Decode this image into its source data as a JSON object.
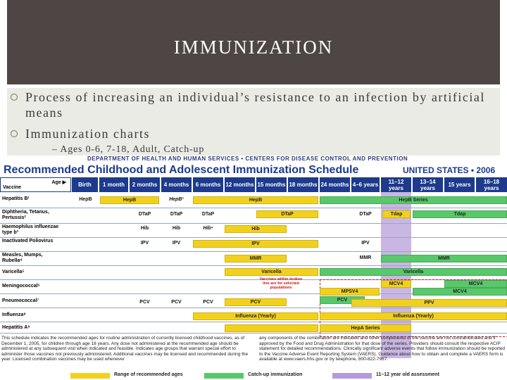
{
  "slide": {
    "title": "IMMUNIZATION",
    "bullets": [
      "Process of increasing an individual’s resistance to an infection by artificial means",
      "Immunization charts"
    ],
    "sub_bullet": "– Ages 0-6, 7-18, Adult, Catch-up",
    "colors": {
      "title_bg": "#4e4644",
      "content_bg": "#e9ebe4",
      "bullet_mark": "#8a8f6b"
    }
  },
  "schedule": {
    "department": "DEPARTMENT OF HEALTH AND HUMAN SERVICES • CENTERS FOR DISEASE CONTROL AND PREVENTION",
    "title": "Recommended Childhood and Adolescent Immunization Schedule",
    "country": "UNITED STATES • 2006",
    "vaccine_header": "Vaccine",
    "age_header": "Age ▶",
    "ages": [
      "Birth",
      "1 month",
      "2 months",
      "4 months",
      "6 months",
      "12 months",
      "15 months",
      "18 months",
      "24 months",
      "4–6 years",
      "11–12 years",
      "13–14 years",
      "15 years",
      "16–18 years"
    ],
    "vaccines": [
      "Hepatitis B¹",
      "Diphtheria, Tetanus, Pertussis²",
      "Haemophilus influenzae type b³",
      "Inactivated Poliovirus",
      "Measles, Mumps, Rubella⁴",
      "Varicella⁵",
      "Meningococcal⁶",
      "Pneumococcal⁷",
      "Influenza⁸",
      "Hepatitis A⁹"
    ],
    "bar_labels": {
      "hepb_birth": "HepB",
      "hepb_1m": "HepB",
      "hepb_2m": "HepB¹",
      "hepb_series": "HepB",
      "hepb_catchup": "HepB Series",
      "dtap_2": "DTaP",
      "dtap_4": "DTaP",
      "dtap_6": "DTaP",
      "dtap_15": "DTaP",
      "dtap_46": "DTaP",
      "tdap_1112": "Tdap",
      "tdap_catch": "Tdap",
      "hib_2": "Hib",
      "hib_4": "Hib",
      "hib_6": "Hib⁴",
      "hib_12": "Hib",
      "ipv_2": "IPV",
      "ipv_4": "IPV",
      "ipv_6": "IPV",
      "ipv_46": "IPV",
      "mmr_12": "MMR",
      "mmr_46": "MMR",
      "mmr_catch": "MMR",
      "var_12": "Varicella",
      "var_catch": "Varicella",
      "mcv4_a": "MCV4",
      "mcv4_b": "MCV4",
      "mcv4_c": "MCV4",
      "mpsv4": "MPSV4",
      "pcv_2": "PCV",
      "pcv_4": "PCV",
      "pcv_6": "PCV",
      "pcv_12": "PCV",
      "pcv_catch": "PCV",
      "ppv": "PPV",
      "flu_a": "Influenza (Yearly)",
      "flu_b": "Influenza (Yearly)",
      "hepa": "HepA Series"
    },
    "note": "Vaccines within broken line are for selected populations",
    "footnote_left": "This schedule indicates the recommended ages for routine administration of currently licensed childhood vaccines, as of December 1, 2005, for children through age 18 years. Any dose not administered at the recommended age should be administered at any subsequent visit when indicated and feasible. Indicates age groups that warrant special effort to administer those vaccines not previously administered. Additional vaccines may be licensed and recommended during the year. Licensed combination vaccines may be used whenever",
    "footnote_right": "any components of the combination are indicated and other components of the vaccine are not contraindicated and if approved by the Food and Drug Administration for that dose of the series. Providers should consult the respective ACIP statement for detailed recommendations. Clinically significant adverse events that follow immunization should be reported to the Vaccine Adverse Event Reporting System (VAERS). Guidance about how to obtain and complete a VAERS form is available at www.vaers.hhs.gov or by telephone, 800-822-7967.",
    "legend": [
      "Range of recommended ages",
      "Catch-up immunization",
      "11–12 year old assessment"
    ],
    "colors": {
      "navy": "#1d3a8c",
      "yellow": "#f2d11e",
      "green": "#58c86a",
      "purple": "#c9b6e3",
      "red": "#c01a1a"
    }
  }
}
